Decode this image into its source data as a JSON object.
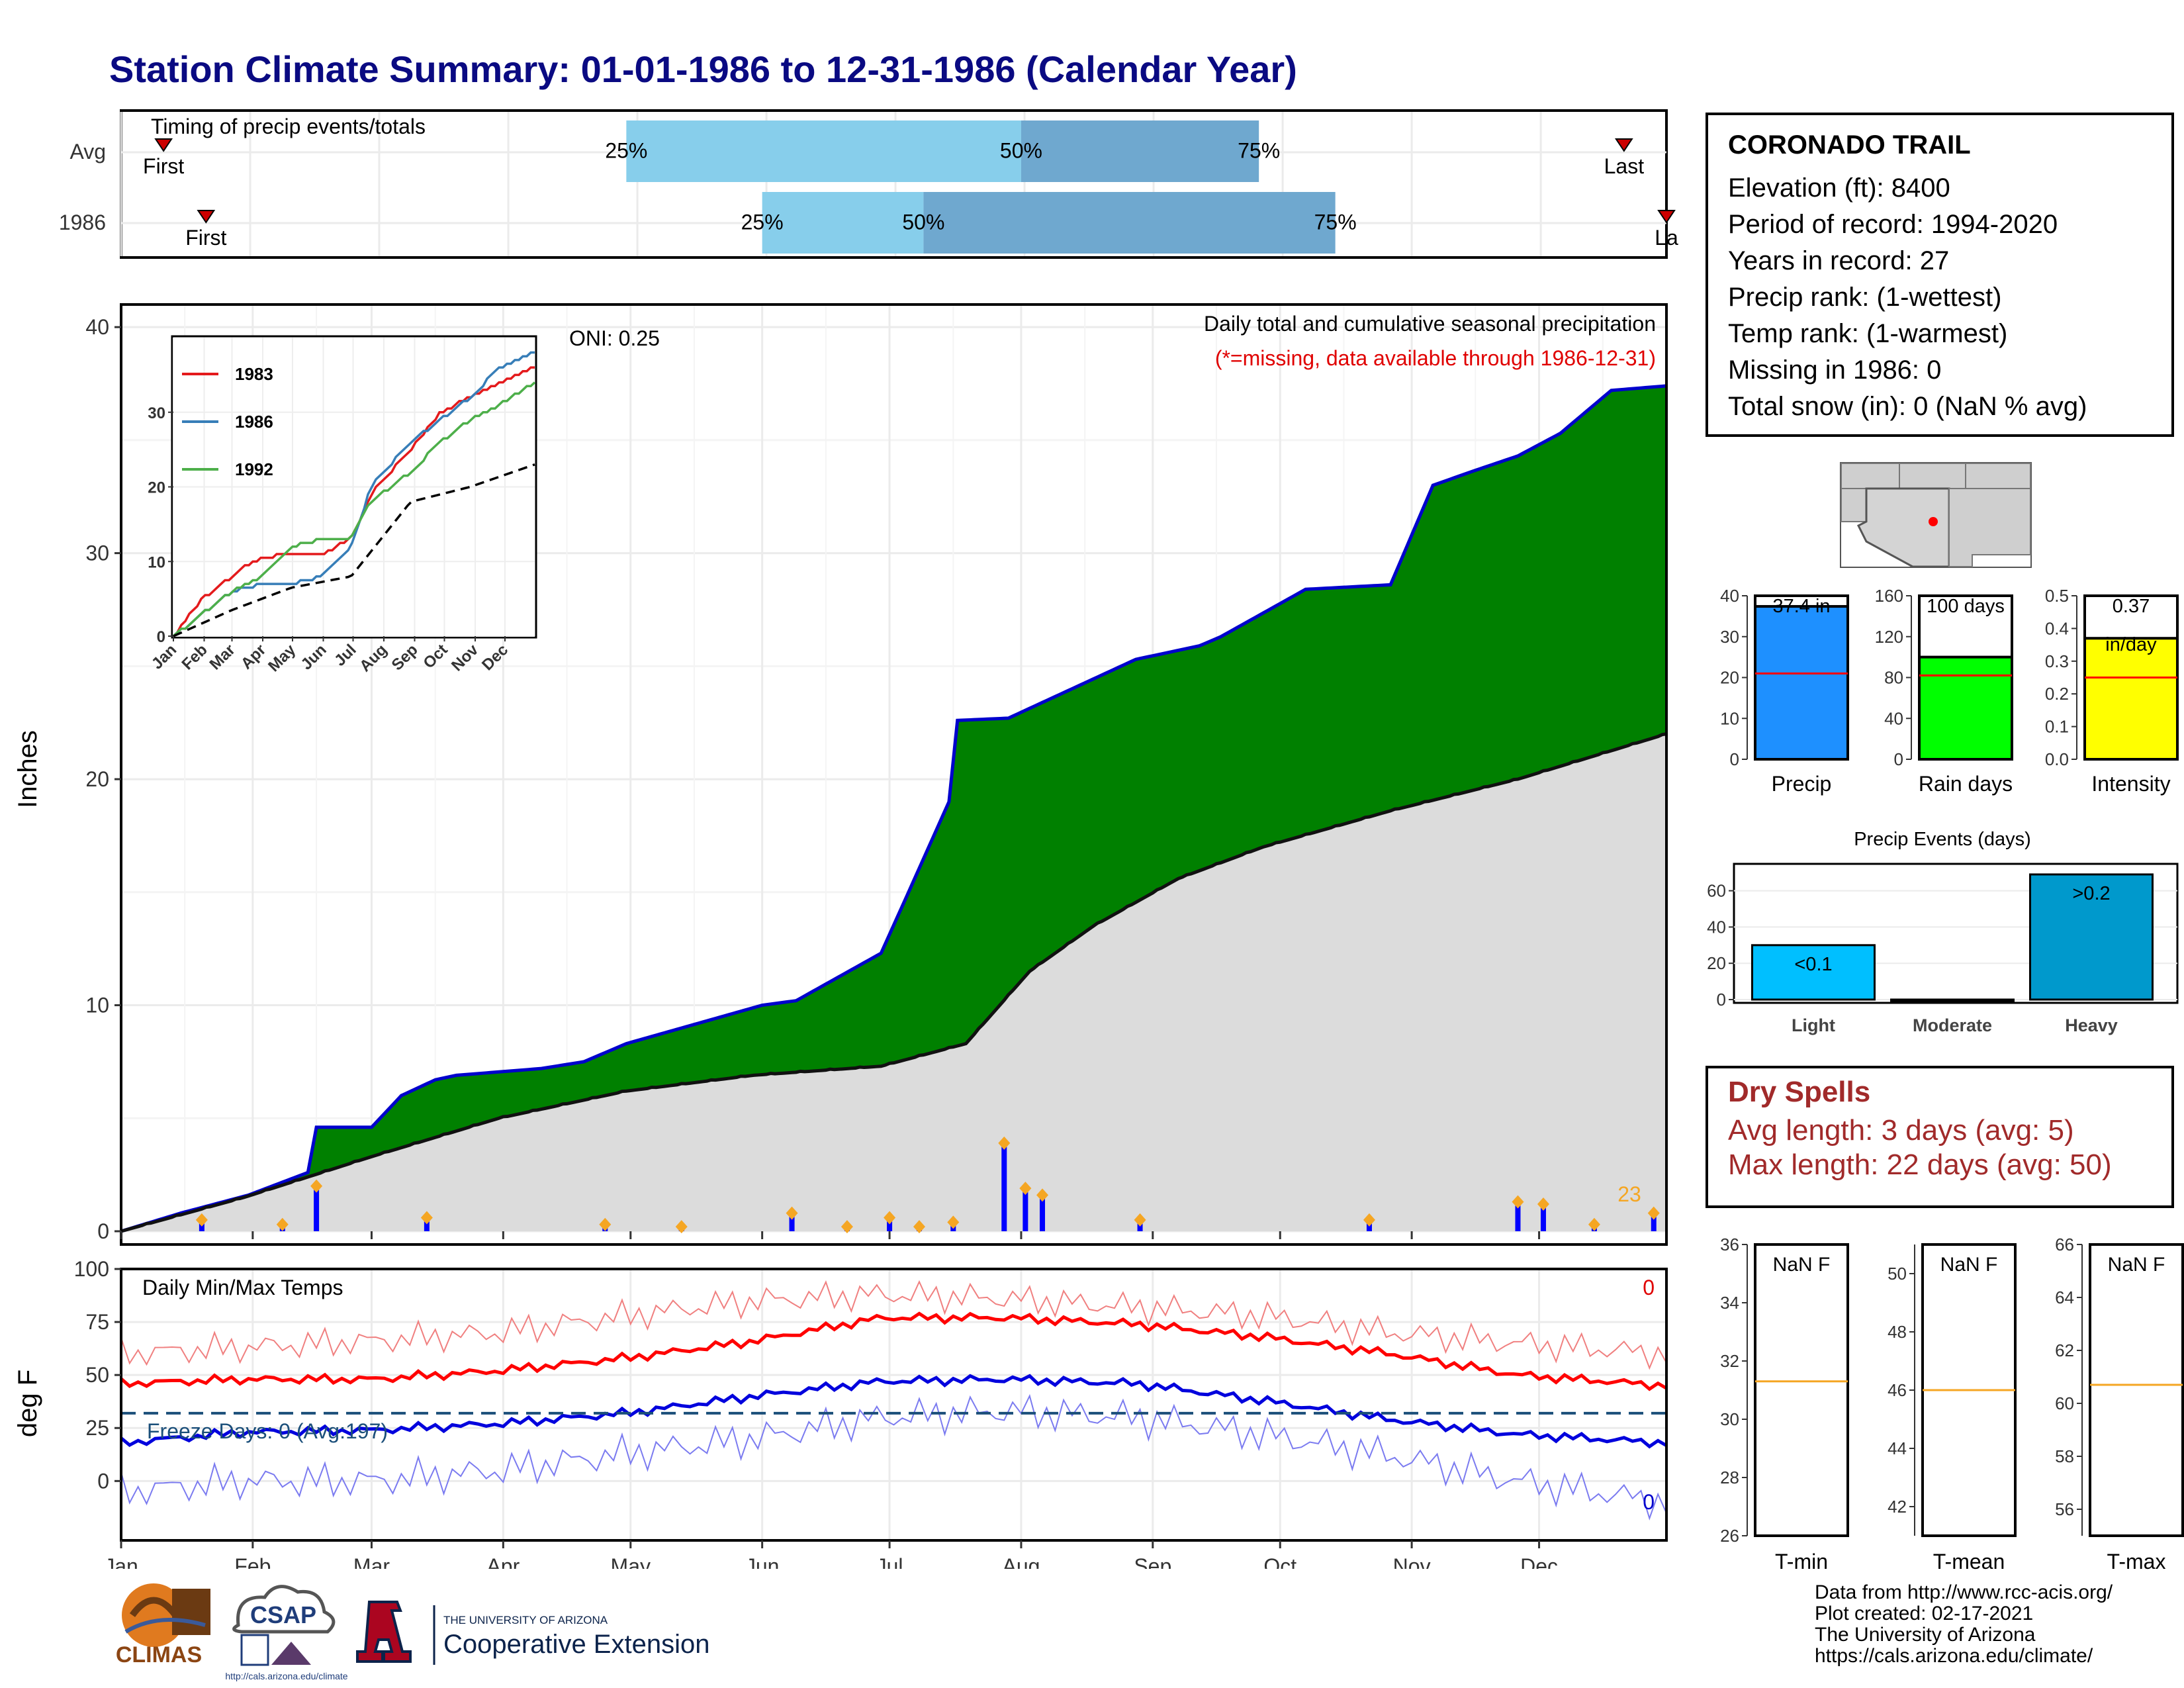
{
  "title": "Station Climate Summary: 01-01-1986 to 12-31-1986 (Calendar Year)",
  "timing": {
    "title": "Timing of precip events/totals",
    "rows": [
      {
        "label": "Avg",
        "first_label": "First",
        "last_label": "Last",
        "p25": "25%",
        "p50": "50%",
        "p75": "75%"
      },
      {
        "label": "1986",
        "first_label": "First",
        "last_label": "La",
        "p25": "25%",
        "p50": "50%",
        "p75": "75%"
      }
    ]
  },
  "main": {
    "ylabel": "Inches",
    "oni": "ONI: 0.25",
    "legend_title": "Daily total and cumulative seasonal precipitation",
    "missing_note": "(*=missing, data available through 1986-12-31)",
    "count_label": "23",
    "yticks": [
      "0",
      "10",
      "20",
      "30",
      "40"
    ],
    "months": [
      "Jan",
      "Feb",
      "Mar",
      "Apr",
      "May",
      "Jun",
      "Jul",
      "Aug",
      "Sep",
      "Oct",
      "Nov",
      "Dec"
    ]
  },
  "inset": {
    "series": [
      {
        "name": "1983",
        "color": "#e41a1c"
      },
      {
        "name": "1986",
        "color": "#377eb8"
      },
      {
        "name": "1992",
        "color": "#4daf4a"
      }
    ],
    "yticks": [
      "0",
      "10",
      "20",
      "30"
    ],
    "months": [
      "Jan",
      "Feb",
      "Mar",
      "Apr",
      "May",
      "Jun",
      "Jul",
      "Aug",
      "Sep",
      "Oct",
      "Nov",
      "Dec"
    ]
  },
  "temps": {
    "title": "Daily Min/Max Temps",
    "ylabel": "deg F",
    "yticks": [
      "0",
      "25",
      "50",
      "75",
      "100"
    ],
    "freeze": "Freeze Days: 0 (Avg:197)",
    "max_count": "0",
    "min_count": "0"
  },
  "info": {
    "name": "CORONADO TRAIL",
    "lines": [
      "Elevation (ft): 8400",
      "Period of record: 1994-2020",
      "Years in record: 27",
      "Precip rank:  (1-wettest)",
      "Temp rank:  (1-warmest)",
      "Missing in 1986: 0",
      "Total snow (in): 0 (NaN % avg)"
    ]
  },
  "bars": {
    "precip": {
      "label": "Precip",
      "value_label": "37.4 in",
      "yticks": [
        "0",
        "10",
        "20",
        "30",
        "40"
      ],
      "color": "#1e90ff"
    },
    "raindays": {
      "label": "Rain days",
      "value_label": "100 days",
      "yticks": [
        "0",
        "40",
        "80",
        "120",
        "160"
      ],
      "color": "#00ff00"
    },
    "intensity": {
      "label": "Intensity",
      "value_label": "0.37",
      "unit_label": "in/day",
      "yticks": [
        "0.0",
        "0.1",
        "0.2",
        "0.3",
        "0.4",
        "0.5"
      ],
      "color": "#ffff00"
    }
  },
  "events": {
    "title": "Precip Events (days)",
    "categories": [
      "Light",
      "Moderate",
      "Heavy"
    ],
    "labels": [
      "<0.1",
      "",
      ">0.2"
    ],
    "yticks": [
      "0",
      "20",
      "40",
      "60"
    ]
  },
  "dry": {
    "title": "Dry Spells",
    "avg": "Avg length: 3 days (avg: 5)",
    "max": "Max length: 22 days (avg: 50)"
  },
  "tpanels": [
    {
      "label": "T-min",
      "value": "NaN F",
      "yticks": [
        "26",
        "28",
        "30",
        "32",
        "34",
        "36"
      ]
    },
    {
      "label": "T-mean",
      "value": "NaN F",
      "yticks": [
        "42",
        "44",
        "46",
        "48",
        "50"
      ]
    },
    {
      "label": "T-max",
      "value": "NaN F",
      "yticks": [
        "56",
        "58",
        "60",
        "62",
        "64",
        "66"
      ]
    }
  ],
  "credits": [
    "Data from http://www.rcc-acis.org/",
    "Plot created: 02-17-2021",
    "The University of Arizona",
    "https://cals.arizona.edu/climate/"
  ],
  "logos": {
    "climas": "CLIMAS",
    "csap": "CSAP",
    "csap_url": "http://cals.arizona.edu/climate",
    "ua_small": "THE UNIVERSITY OF ARIZONA",
    "ua_big": "Cooperative Extension"
  },
  "chart_data": [
    {
      "type": "timing",
      "title": "Timing of precip events/totals",
      "rows": [
        {
          "label": "Avg",
          "first": "Jan 11",
          "p25": "Apr 30",
          "p50": "Aug 1",
          "p75": "Sep 26",
          "last": "Dec 21"
        },
        {
          "label": "1986",
          "first": "Jan 21",
          "p25": "Jun 1",
          "p50": "Jul 9",
          "p75": "Oct 14",
          "last": "Dec 31"
        }
      ]
    },
    {
      "type": "area",
      "title": "Daily total and cumulative seasonal precipitation",
      "ylabel": "Inches",
      "ylim": [
        0,
        41
      ],
      "x_months": [
        "Jan",
        "Feb",
        "Mar",
        "Apr",
        "May",
        "Jun",
        "Jul",
        "Aug",
        "Sep",
        "Oct",
        "Nov",
        "Dec"
      ],
      "series": [
        {
          "name": "1986 cumulative",
          "x": [
            1,
            15,
            31,
            45,
            47,
            60,
            67,
            75,
            80,
            100,
            110,
            120,
            152,
            160,
            180,
            186,
            196,
            198,
            210,
            240,
            255,
            260,
            280,
            300,
            310,
            319,
            330,
            340,
            352,
            365
          ],
          "y": [
            0,
            0.8,
            1.6,
            2.6,
            4.6,
            4.6,
            6.0,
            6.7,
            6.9,
            7.2,
            7.5,
            8.3,
            10.0,
            10.2,
            12.3,
            14.8,
            19.0,
            22.6,
            22.7,
            25.3,
            25.9,
            26.3,
            28.4,
            28.6,
            33.0,
            33.6,
            34.3,
            35.3,
            37.2,
            37.4
          ]
        },
        {
          "name": "Average cumulative",
          "x": [
            1,
            30,
            60,
            90,
            120,
            150,
            180,
            200,
            215,
            230,
            250,
            270,
            300,
            330,
            365
          ],
          "y": [
            0,
            1.5,
            3.3,
            5.0,
            6.2,
            6.9,
            7.3,
            8.3,
            11.5,
            13.5,
            15.6,
            17.0,
            18.6,
            20.0,
            22.0
          ]
        }
      ],
      "daily_events": [
        {
          "x": 20,
          "y": 0.5
        },
        {
          "x": 39,
          "y": 0.3
        },
        {
          "x": 47,
          "y": 2.0
        },
        {
          "x": 73,
          "y": 0.6
        },
        {
          "x": 115,
          "y": 0.3
        },
        {
          "x": 133,
          "y": 0.2
        },
        {
          "x": 159,
          "y": 0.8
        },
        {
          "x": 172,
          "y": 0.2
        },
        {
          "x": 182,
          "y": 0.6
        },
        {
          "x": 189,
          "y": 0.2
        },
        {
          "x": 197,
          "y": 0.4
        },
        {
          "x": 209,
          "y": 3.9
        },
        {
          "x": 214,
          "y": 1.9
        },
        {
          "x": 218,
          "y": 1.6
        },
        {
          "x": 241,
          "y": 0.5
        },
        {
          "x": 295,
          "y": 0.5
        },
        {
          "x": 330,
          "y": 1.3
        },
        {
          "x": 336,
          "y": 1.2
        },
        {
          "x": 348,
          "y": 0.3
        },
        {
          "x": 362,
          "y": 0.8
        }
      ]
    },
    {
      "type": "line",
      "title": "Inset cumulative precipitation",
      "ylim": [
        0,
        40
      ],
      "series": [
        {
          "name": "1983",
          "x": [
            1,
            30,
            60,
            80,
            110,
            150,
            180,
            200,
            240,
            270,
            300,
            330,
            365
          ],
          "y": [
            0,
            5,
            8,
            10,
            11,
            11,
            13,
            19,
            25,
            30,
            32,
            34,
            36
          ]
        },
        {
          "name": "1986",
          "x": [
            1,
            30,
            60,
            90,
            120,
            150,
            180,
            200,
            240,
            270,
            300,
            330,
            365
          ],
          "y": [
            0,
            3,
            6,
            7,
            7,
            8,
            12,
            20,
            26,
            29,
            32,
            36,
            38
          ]
        },
        {
          "name": "1992",
          "x": [
            1,
            30,
            60,
            90,
            120,
            150,
            180,
            200,
            240,
            270,
            300,
            330,
            365
          ],
          "y": [
            0,
            3,
            6,
            8,
            12,
            13,
            13,
            18,
            22,
            26,
            29,
            31,
            34
          ]
        },
        {
          "name": "Average",
          "x": [
            1,
            60,
            120,
            180,
            240,
            300,
            365
          ],
          "y": [
            0,
            3.5,
            6.5,
            8,
            18,
            20,
            23
          ]
        }
      ]
    },
    {
      "type": "line",
      "title": "Daily Min/Max Temps",
      "ylabel": "deg F",
      "ylim": [
        -20,
        100
      ],
      "series": [
        {
          "name": "Avg max",
          "x": [
            1,
            30,
            60,
            90,
            120,
            150,
            180,
            210,
            240,
            270,
            300,
            330,
            365
          ],
          "y": [
            46,
            48,
            48,
            52,
            58,
            66,
            77,
            77,
            74,
            68,
            60,
            50,
            45
          ]
        },
        {
          "name": "Avg min",
          "x": [
            1,
            30,
            60,
            90,
            120,
            150,
            180,
            210,
            240,
            270,
            300,
            330,
            365
          ],
          "y": [
            18,
            23,
            24,
            27,
            32,
            40,
            47,
            48,
            46,
            38,
            29,
            22,
            18
          ]
        },
        {
          "name": "1986 max",
          "x": [
            1,
            30,
            60,
            90,
            120,
            150,
            180,
            210,
            240,
            270,
            300,
            330,
            365
          ],
          "y": [
            60,
            63,
            66,
            70,
            78,
            85,
            88,
            86,
            82,
            78,
            70,
            65,
            60
          ]
        },
        {
          "name": "1986 min",
          "x": [
            1,
            30,
            60,
            90,
            120,
            150,
            180,
            210,
            240,
            270,
            300,
            330,
            365
          ],
          "y": [
            -5,
            0,
            0,
            5,
            13,
            20,
            30,
            33,
            30,
            22,
            12,
            0,
            -10
          ]
        }
      ],
      "freeze_line": 32
    },
    {
      "type": "bar",
      "title": "Precip",
      "categories": [
        "Precip"
      ],
      "values": [
        37.4
      ],
      "ylim": [
        0,
        40
      ],
      "average": 21
    },
    {
      "type": "bar",
      "title": "Rain days",
      "categories": [
        "Rain days"
      ],
      "values": [
        100
      ],
      "ylim": [
        0,
        160
      ],
      "average": 82
    },
    {
      "type": "bar",
      "title": "Intensity",
      "categories": [
        "Intensity"
      ],
      "values": [
        0.37
      ],
      "ylim": [
        0,
        0.5
      ],
      "average": 0.25
    },
    {
      "type": "bar",
      "title": "Precip Events (days)",
      "categories": [
        "Light",
        "Moderate",
        "Heavy"
      ],
      "values": [
        30,
        0,
        69
      ],
      "ylim": [
        0,
        70
      ]
    },
    {
      "type": "bar",
      "title": "T-min",
      "values": [],
      "ylim": [
        26,
        36
      ],
      "average": 31.3
    },
    {
      "type": "bar",
      "title": "T-mean",
      "values": [],
      "ylim": [
        41,
        51
      ],
      "average": 46
    },
    {
      "type": "bar",
      "title": "T-max",
      "values": [],
      "ylim": [
        55,
        66
      ],
      "average": 60.7
    }
  ]
}
